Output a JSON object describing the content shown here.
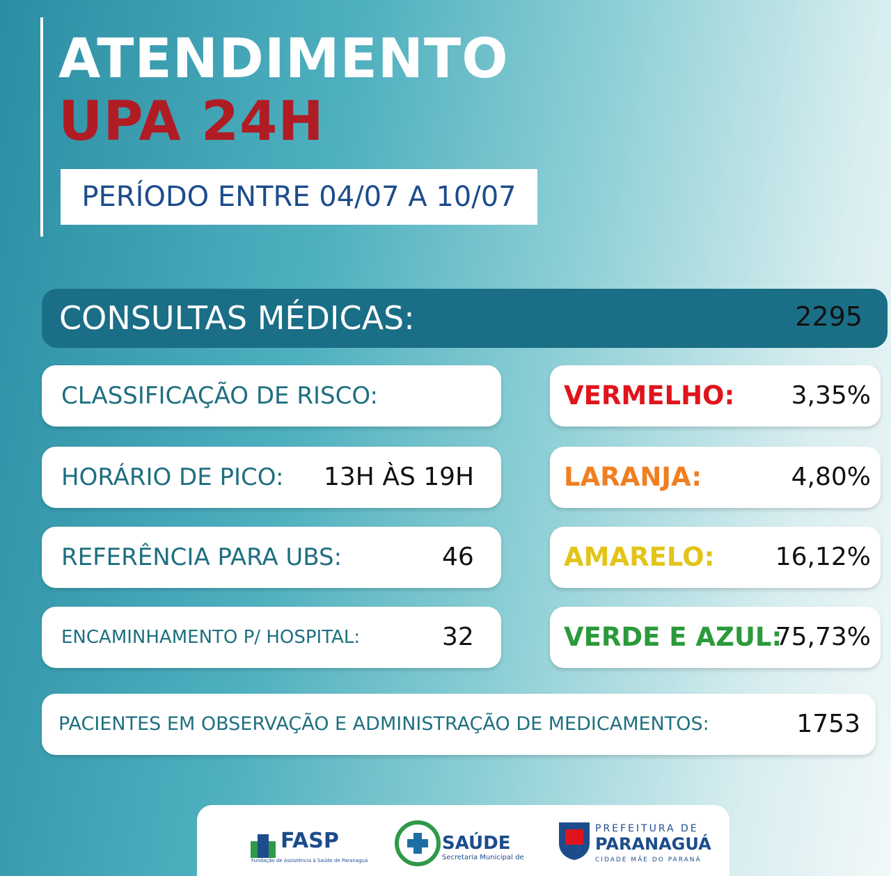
{
  "header": {
    "title": "ATENDIMENTO",
    "subtitle": "UPA 24H",
    "period": "PERÍODO ENTRE 04/07 A 10/07"
  },
  "consultas": {
    "label": "CONSULTAS MÉDICAS:",
    "value": 2295
  },
  "left_cards": [
    {
      "label": "CLASSIFICAÇÃO DE RISCO:"
    },
    {
      "label": "HORÁRIO DE PICO:",
      "value": "13H ÀS 19H"
    },
    {
      "label": "REFERÊNCIA PARA UBS:",
      "value": 46
    },
    {
      "label": "ENCAMINHAMENTO P/ HOSPITAL:",
      "value": 32
    }
  ],
  "risk": [
    {
      "label": "VERMELHO:",
      "value": "3,35%",
      "color": "#e0141c"
    },
    {
      "label": "LARANJA:",
      "value": "4,80%",
      "color": "#f07f22"
    },
    {
      "label": "AMARELO:",
      "value": "16,12%",
      "color": "#e2c41a"
    },
    {
      "label": "VERDE E AZUL:",
      "value": "75,73%",
      "color": "#2a9a3a"
    }
  ],
  "observacao": {
    "label": "PACIENTES EM OBSERVAÇÃO E ADMINISTRAÇÃO DE MEDICAMENTOS:",
    "value": 1753
  },
  "footer": {
    "fasp": "FASP",
    "fasp_sub": "Fundação de Assistência à Saúde de Paranaguá",
    "saude": "SAÚDE",
    "saude_sub": "Secretaria Municipal de",
    "pref_top": "PREFEITURA DE",
    "pref_name": "PARANAGUÁ",
    "pref_sub": "CIDADE MÃE DO PARANÁ"
  }
}
